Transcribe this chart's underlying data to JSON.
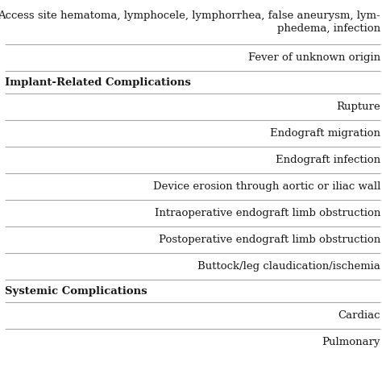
{
  "rows": [
    {
      "text": "Access site hematoma, lymphocele, lymphorrhea, false aneurysm, lym-\nphedema, infection",
      "align": "right",
      "bold": false,
      "multiline": true,
      "separator_below": true
    },
    {
      "text": "Fever of unknown origin",
      "align": "right",
      "bold": false,
      "multiline": false,
      "separator_below": true
    },
    {
      "text": "Implant-Related Complications",
      "align": "left",
      "bold": true,
      "multiline": false,
      "separator_below": true
    },
    {
      "text": "Rupture",
      "align": "right",
      "bold": false,
      "multiline": false,
      "separator_below": true
    },
    {
      "text": "Endograft migration",
      "align": "right",
      "bold": false,
      "multiline": false,
      "separator_below": true
    },
    {
      "text": "Endograft infection",
      "align": "right",
      "bold": false,
      "multiline": false,
      "separator_below": true
    },
    {
      "text": "Device erosion through aortic or iliac wall",
      "align": "right",
      "bold": false,
      "multiline": false,
      "separator_below": true
    },
    {
      "text": "Intraoperative endograft limb obstruction",
      "align": "right",
      "bold": false,
      "multiline": false,
      "separator_below": true
    },
    {
      "text": "Postoperative endograft limb obstruction",
      "align": "right",
      "bold": false,
      "multiline": false,
      "separator_below": true
    },
    {
      "text": "Buttock/leg claudication/ischemia",
      "align": "right",
      "bold": false,
      "multiline": false,
      "separator_below": true
    },
    {
      "text": "Systemic Complications",
      "align": "left",
      "bold": true,
      "multiline": false,
      "separator_below": true
    },
    {
      "text": "Cardiac",
      "align": "right",
      "bold": false,
      "multiline": false,
      "separator_below": true
    },
    {
      "text": "Pulmonary",
      "align": "right",
      "bold": false,
      "multiline": false,
      "separator_below": false
    }
  ],
  "background_color": "#ffffff",
  "text_color": "#1a1a1a",
  "line_color": "#aaaaaa",
  "font_size": 9.5,
  "fig_width": 4.74,
  "fig_height": 4.74,
  "dpi": 100
}
